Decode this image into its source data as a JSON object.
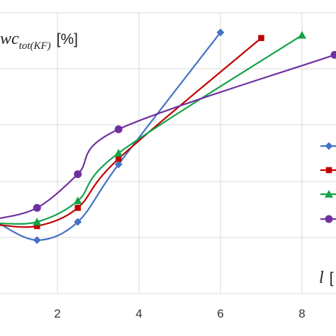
{
  "chart_data": {
    "type": "line",
    "ylabel": {
      "main": "wc",
      "sub": "tot(KF)",
      "unit": "[%]"
    },
    "xlabel": {
      "main": "l",
      "unit": "["
    },
    "x_ticks": [
      "2",
      "4",
      "6",
      "8"
    ],
    "xlim": [
      0.6,
      8.8
    ],
    "ylim": [
      0,
      1
    ],
    "grid": true,
    "legend": "right",
    "series": [
      {
        "color": "#4472C4",
        "marker": "diamond",
        "x": [
          0.5,
          1.5,
          2.5,
          3.5,
          6.0
        ],
        "y": [
          0.255,
          0.19,
          0.255,
          0.46,
          0.93
        ]
      },
      {
        "color": "#C00000",
        "marker": "square",
        "x": [
          0.5,
          1.5,
          2.5,
          3.5,
          7.0
        ],
        "y": [
          0.245,
          0.24,
          0.305,
          0.48,
          0.91
        ]
      },
      {
        "color": "#12A34A",
        "marker": "triangle",
        "x": [
          0.5,
          1.5,
          2.5,
          3.5,
          8.0
        ],
        "y": [
          0.25,
          0.255,
          0.33,
          0.5,
          0.92
        ]
      },
      {
        "color": "#7030A0",
        "marker": "circle",
        "x": [
          0.5,
          1.5,
          2.5,
          3.5,
          8.8
        ],
        "y": [
          0.265,
          0.305,
          0.425,
          0.585,
          0.85
        ]
      }
    ]
  }
}
